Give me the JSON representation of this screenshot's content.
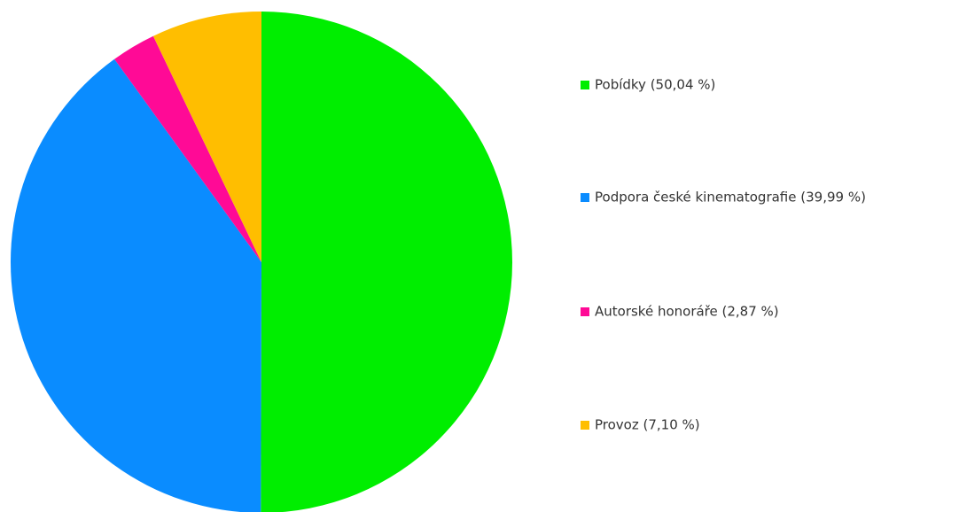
{
  "chart_data": {
    "type": "pie",
    "categories": [
      "Pobídky (50,04 %)",
      "Podpora české kinematografie (39,99 %)",
      "Autorské honoráře (2,87 %)",
      "Provoz (7,10 %)"
    ],
    "values": [
      50.04,
      39.99,
      2.87,
      7.1
    ],
    "colors": [
      "#00ee00",
      "#0a8cff",
      "#ff0a96",
      "#ffbe00"
    ],
    "legend": "right"
  }
}
